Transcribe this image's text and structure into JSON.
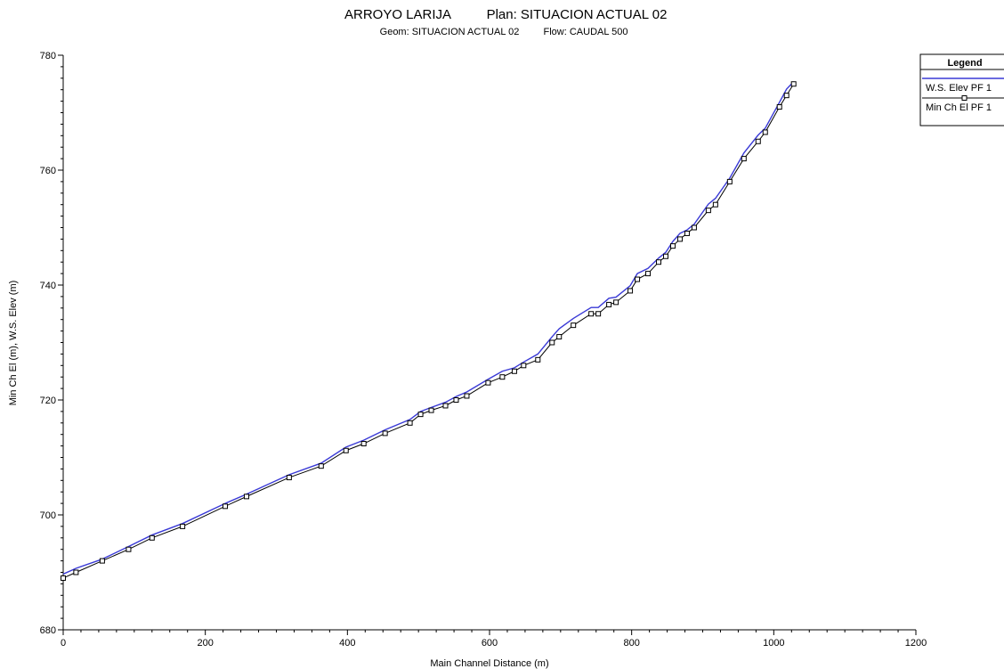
{
  "chart_data": {
    "type": "line",
    "title": "ARROYO LARIJA",
    "plan": "Plan: SITUACION ACTUAL 02",
    "subtitle_geom": "Geom: SITUACION ACTUAL 02",
    "subtitle_flow": "Flow: CAUDAL 500",
    "xlabel": "Main Channel Distance (m)",
    "ylabel": "Min Ch El (m), W.S. Elev (m)",
    "xlim": [
      0,
      1200
    ],
    "ylim": [
      680,
      780
    ],
    "x_ticks": [
      0,
      200,
      400,
      600,
      800,
      1000,
      1200
    ],
    "y_ticks": [
      680,
      700,
      720,
      740,
      760,
      780
    ],
    "grid": false,
    "legend": {
      "title": "Legend",
      "placement": "top-right",
      "entries": [
        "W.S. Elev PF 1",
        "Min Ch El PF 1"
      ]
    },
    "series": [
      {
        "name": "W.S. Elev PF 1",
        "color": "#3a3ad6",
        "marker": "none",
        "x": [
          0,
          18,
          55,
          92,
          125,
          168,
          228,
          258,
          318,
          363,
          398,
          423,
          453,
          488,
          503,
          518,
          538,
          553,
          568,
          598,
          618,
          635,
          648,
          668,
          688,
          698,
          718,
          743,
          753,
          768,
          778,
          798,
          808,
          823,
          838,
          848,
          858,
          868,
          878,
          888,
          908,
          918,
          938,
          958,
          978,
          988,
          1008,
          1018,
          1028
        ],
        "y": [
          689.7,
          690.7,
          692.3,
          694.5,
          696.5,
          698.5,
          702.0,
          703.6,
          707.0,
          709.0,
          711.8,
          713.0,
          714.8,
          716.6,
          718.0,
          718.7,
          719.6,
          720.6,
          721.4,
          723.6,
          725.0,
          725.6,
          726.6,
          728.0,
          731.0,
          732.4,
          734.2,
          736.1,
          736.1,
          737.7,
          737.9,
          739.9,
          742.0,
          742.9,
          744.7,
          745.7,
          747.6,
          749.0,
          749.6,
          750.6,
          754.1,
          755.1,
          758.6,
          763.0,
          766.1,
          767.3,
          771.8,
          774.1,
          775.4
        ]
      },
      {
        "name": "Min Ch El PF 1",
        "color": "#000000",
        "marker": "square",
        "x": [
          0,
          18,
          55,
          92,
          125,
          168,
          228,
          258,
          318,
          363,
          398,
          423,
          453,
          488,
          503,
          518,
          538,
          553,
          568,
          598,
          618,
          635,
          648,
          668,
          688,
          698,
          718,
          743,
          753,
          768,
          778,
          798,
          808,
          823,
          838,
          848,
          858,
          868,
          878,
          888,
          908,
          918,
          938,
          958,
          978,
          988,
          1008,
          1018,
          1028
        ],
        "y": [
          689.0,
          690.0,
          692.0,
          694.0,
          696.0,
          698.0,
          701.5,
          703.2,
          706.5,
          708.5,
          711.2,
          712.4,
          714.2,
          716.0,
          717.5,
          718.2,
          719.0,
          720.0,
          720.7,
          723.0,
          724.0,
          725.0,
          726.0,
          727.0,
          730.0,
          731.0,
          733.0,
          735.0,
          735.0,
          736.6,
          737.0,
          739.0,
          741.0,
          742.0,
          744.0,
          745.0,
          746.8,
          748.0,
          749.0,
          750.0,
          753.0,
          754.0,
          758.0,
          762.0,
          765.0,
          766.6,
          771.0,
          773.0,
          775.0
        ]
      }
    ]
  }
}
